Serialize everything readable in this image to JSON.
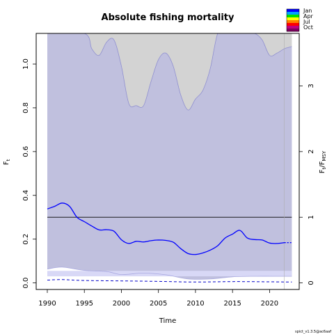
{
  "chart_data": {
    "type": "line",
    "title": "Absolute fishing mortality",
    "xlabel": "Time",
    "ylabel": "F",
    "ylabel_sub": "t",
    "y2label_f": "F",
    "y2label_f_sub": "t",
    "y2label_slash": "/",
    "y2label_den": "F",
    "y2label_den_sub": "MSY",
    "xlim": [
      1988.5,
      2024.0
    ],
    "ylim": [
      -0.03,
      1.14
    ],
    "x_ticks": [
      1990,
      1995,
      2000,
      2005,
      2010,
      2015,
      2020
    ],
    "y_ticks": [
      "0.0",
      "0.2",
      "0.4",
      "0.6",
      "0.8",
      "1.0"
    ],
    "y2_ticks": [
      "0",
      "1",
      "2",
      "3"
    ],
    "fmsy": 0.3,
    "forecast_start": 2022.0,
    "legend": {
      "position": "top-right",
      "labels": [
        "Jan",
        "Apr",
        "Jul",
        "Oct"
      ],
      "colors": [
        "#0000ff",
        "#00a0ff",
        "#00e000",
        "#ffff00",
        "#ff8000",
        "#ff0000",
        "#c00080",
        "#800060"
      ]
    },
    "colors": {
      "ci_fill": "#c0c0de",
      "fmsy_ci_fill": "#d3d3d3",
      "low_band": "#d8d8f6",
      "series": "#0000ff",
      "fmsy_line": "#000000"
    },
    "series": [
      {
        "role": "F",
        "x": [
          1990,
          1991,
          1992,
          1993,
          1994,
          1995,
          1996,
          1997,
          1998,
          1999,
          2000,
          2001,
          2002,
          2003,
          2004,
          2005,
          2006,
          2007,
          2008,
          2009,
          2010,
          2011,
          2012,
          2013,
          2014,
          2015,
          2016,
          2017,
          2018,
          2019,
          2020,
          2021,
          2022
        ],
        "y": [
          0.338,
          0.35,
          0.365,
          0.35,
          0.3,
          0.28,
          0.26,
          0.242,
          0.243,
          0.236,
          0.197,
          0.18,
          0.19,
          0.187,
          0.193,
          0.196,
          0.194,
          0.186,
          0.157,
          0.134,
          0.13,
          0.137,
          0.15,
          0.17,
          0.205,
          0.223,
          0.24,
          0.205,
          0.198,
          0.196,
          0.182,
          0.18,
          0.184
        ]
      },
      {
        "role": "F_forecast",
        "x": [
          2022,
          2023
        ],
        "y": [
          0.184,
          0.184
        ]
      },
      {
        "role": "CI_upper",
        "x": [
          1990,
          1995,
          1996,
          1997,
          1998,
          1999,
          2000,
          2001,
          2002,
          2003,
          2004,
          2005,
          2006,
          2007,
          2008,
          2009,
          2010,
          2011,
          2012,
          2013,
          2014,
          2015,
          2023
        ],
        "y": [
          1.14,
          1.14,
          1.14,
          1.14,
          1.14,
          1.14,
          1.14,
          1.14,
          1.14,
          1.14,
          1.14,
          1.14,
          1.14,
          1.14,
          1.14,
          1.14,
          1.14,
          1.14,
          1.14,
          1.14,
          1.14,
          1.14,
          1.14
        ]
      },
      {
        "role": "Fmsy_CI_lower",
        "x": [
          1990,
          1995,
          1996,
          1997,
          1998,
          1999,
          2000,
          2001,
          2002,
          2003,
          2004,
          2005,
          2006,
          2007,
          2008,
          2009,
          2010,
          2011,
          2012,
          2013,
          2014,
          2015,
          2016,
          2017,
          2018,
          2019,
          2020,
          2021,
          2022,
          2023
        ],
        "y": [
          1.14,
          1.14,
          1.07,
          1.04,
          1.1,
          1.11,
          0.99,
          0.82,
          0.81,
          0.81,
          0.92,
          1.02,
          1.05,
          0.99,
          0.86,
          0.79,
          0.84,
          0.88,
          0.98,
          1.14,
          1.14,
          1.14,
          1.14,
          1.14,
          1.14,
          1.11,
          1.04,
          1.05,
          1.07,
          1.08
        ]
      },
      {
        "role": "CI_lower",
        "x": [
          1990,
          1992,
          1995,
          1998,
          2000,
          2003,
          2006,
          2009,
          2012,
          2015,
          2018,
          2021,
          2023
        ],
        "y": [
          0.063,
          0.072,
          0.057,
          0.052,
          0.038,
          0.045,
          0.037,
          0.018,
          0.018,
          0.028,
          0.03,
          0.03,
          0.03
        ]
      },
      {
        "role": "F_lower_dashed",
        "x": [
          1990,
          1992,
          1995,
          2000,
          2005,
          2010,
          2015,
          2020,
          2023
        ],
        "y": [
          0.013,
          0.015,
          0.011,
          0.009,
          0.007,
          0.004,
          0.006,
          0.005,
          0.004
        ]
      }
    ],
    "version_label": "spict_v1.3.5@ac6aaf"
  }
}
